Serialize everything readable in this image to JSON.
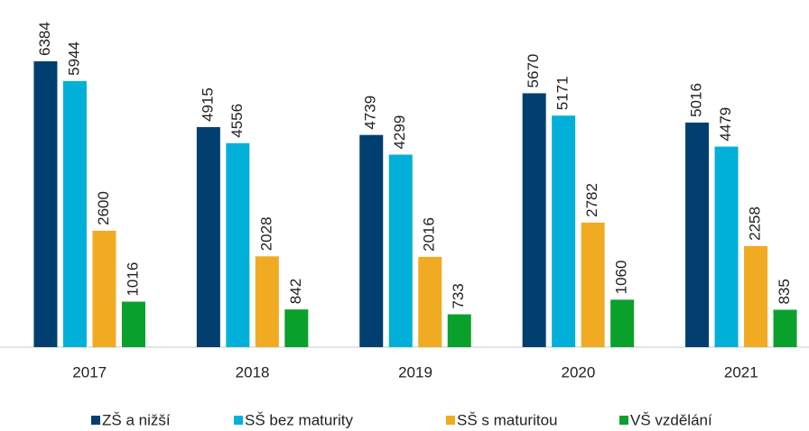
{
  "chart_data": {
    "type": "bar",
    "categories": [
      "2017",
      "2018",
      "2019",
      "2020",
      "2021"
    ],
    "series": [
      {
        "name": "ZŠ a nižší",
        "color": "#003f6f",
        "values": [
          6384,
          4915,
          4739,
          5670,
          5016
        ]
      },
      {
        "name": "SŠ bez maturity",
        "color": "#00b0d8",
        "values": [
          5944,
          4556,
          4299,
          5171,
          4479
        ]
      },
      {
        "name": "SŠ s maturitou",
        "color": "#f0ab22",
        "values": [
          2600,
          2028,
          2016,
          2782,
          2258
        ]
      },
      {
        "name": "VŠ vzdělání",
        "color": "#0aa02c",
        "values": [
          1016,
          842,
          733,
          1060,
          835
        ]
      }
    ],
    "ylim": [
      0,
      7000
    ]
  }
}
